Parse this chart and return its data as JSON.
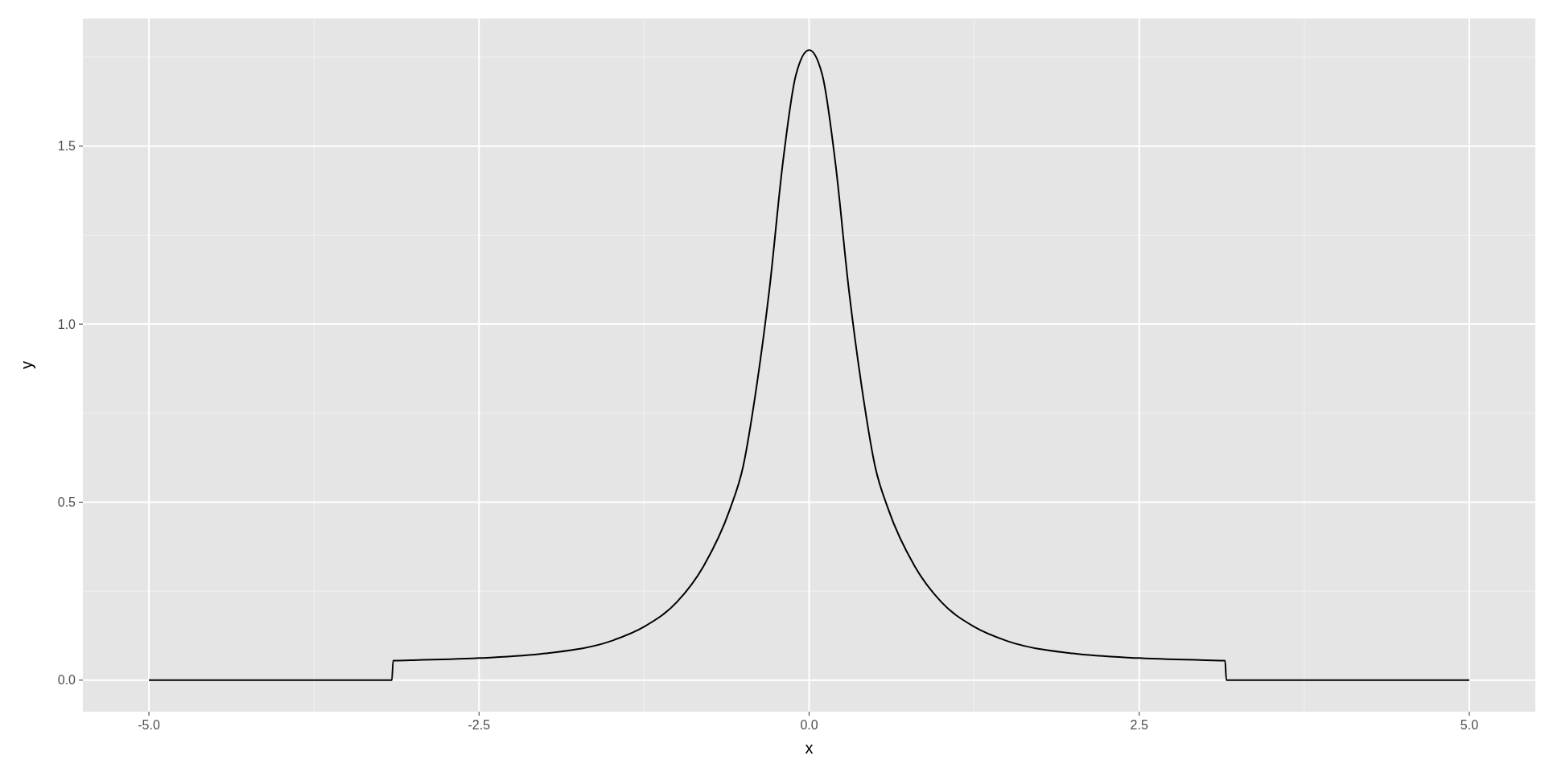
{
  "chart_data": {
    "type": "line",
    "xlabel": "x",
    "ylabel": "y",
    "x": [
      -5,
      -3.16,
      -3.15,
      -3,
      -2.5,
      -2,
      -1.5,
      -1.25,
      -1,
      -0.8,
      -0.6,
      -0.5,
      -0.4,
      -0.3,
      -0.2,
      -0.1,
      0,
      0.1,
      0.2,
      0.3,
      0.4,
      0.5,
      0.6,
      0.8,
      1,
      1.25,
      1.5,
      2,
      2.5,
      3,
      3.15,
      3.16,
      5
    ],
    "series": [
      {
        "color": "#000000",
        "values": [
          0,
          0,
          0.055,
          0.056,
          0.062,
          0.075,
          0.11,
          0.15,
          0.22,
          0.32,
          0.48,
          0.6,
          0.82,
          1.1,
          1.45,
          1.7,
          1.77,
          1.7,
          1.45,
          1.1,
          0.82,
          0.6,
          0.48,
          0.32,
          0.22,
          0.15,
          0.11,
          0.075,
          0.062,
          0.056,
          0.055,
          0,
          0
        ]
      }
    ],
    "xlim": [
      -5.5,
      5.5
    ],
    "ylim": [
      -0.0885,
      1.8585
    ],
    "xticks": [
      {
        "value": -5,
        "label": "-5.0"
      },
      -2.5,
      {
        "value": 0,
        "label": "0.0"
      },
      2.5,
      {
        "value": 5,
        "label": "5.0"
      }
    ],
    "yticks": [
      {
        "value": 0,
        "label": "0.0"
      },
      0.5,
      {
        "value": 1,
        "label": "1.0"
      },
      1.5
    ],
    "grid": true,
    "marker": "none",
    "line_style": "solid"
  }
}
